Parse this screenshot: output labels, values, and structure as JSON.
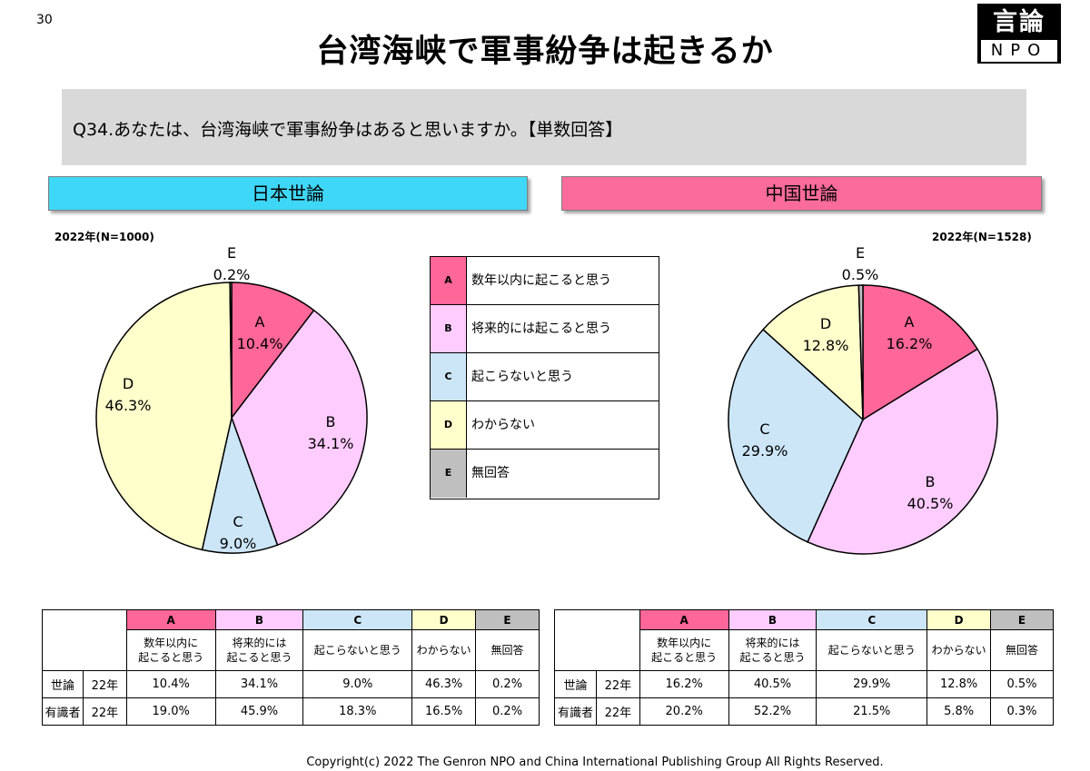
{
  "page_number": "30",
  "title": "台湾海峡で軍事紛争は起きるか",
  "logo": {
    "top": "言論",
    "bottom": "NPO"
  },
  "question": "Q34.あなたは、台湾海峡で軍事紛争はあると思いますか。【単数回答】",
  "japan": {
    "header": "日本世論",
    "sample": "2022年(N=1000)"
  },
  "china": {
    "header": "中国世論",
    "sample": "2022年(N=1528)"
  },
  "colors": {
    "A": "#ff6699",
    "B": "#ffccff",
    "C": "#cce6f8",
    "D": "#ffffcc",
    "E": "#bfbfbf"
  },
  "legend": [
    {
      "key": "A",
      "label": "数年以内に起こると思う"
    },
    {
      "key": "B",
      "label": "将来的には起こると思う"
    },
    {
      "key": "C",
      "label": "起こらないと思う"
    },
    {
      "key": "D",
      "label": "わからない"
    },
    {
      "key": "E",
      "label": "無回答"
    }
  ],
  "chart_data": [
    {
      "type": "pie",
      "title": "日本世論",
      "subtitle": "2022年(N=1000)",
      "categories": [
        "A",
        "B",
        "C",
        "D",
        "E"
      ],
      "values": [
        10.4,
        34.1,
        9.0,
        46.3,
        0.2
      ],
      "value_labels": [
        "10.4%",
        "34.1%",
        "9.0%",
        "46.3%",
        "0.2%"
      ]
    },
    {
      "type": "pie",
      "title": "中国世論",
      "subtitle": "2022年(N=1528)",
      "categories": [
        "A",
        "B",
        "C",
        "D",
        "E"
      ],
      "values": [
        16.2,
        40.5,
        29.9,
        12.8,
        0.5
      ],
      "value_labels": [
        "16.2%",
        "40.5%",
        "29.9%",
        "12.8%",
        "0.5%"
      ]
    },
    {
      "type": "table",
      "title": "日本世論",
      "columns": [
        "A",
        "B",
        "C",
        "D",
        "E"
      ],
      "column_labels": [
        "数年以内に\n起こると思う",
        "将来的には\n起こると思う",
        "起こらないと思う",
        "わからない",
        "無回答"
      ],
      "rows": [
        {
          "group": "世論",
          "year": "22年",
          "values": [
            "10.4%",
            "34.1%",
            "9.0%",
            "46.3%",
            "0.2%"
          ]
        },
        {
          "group": "有識者",
          "year": "22年",
          "values": [
            "19.0%",
            "45.9%",
            "18.3%",
            "16.5%",
            "0.2%"
          ]
        }
      ]
    },
    {
      "type": "table",
      "title": "中国世論",
      "columns": [
        "A",
        "B",
        "C",
        "D",
        "E"
      ],
      "column_labels": [
        "数年以内に\n起こると思う",
        "将来的には\n起こると思う",
        "起こらないと思う",
        "わからない",
        "無回答"
      ],
      "rows": [
        {
          "group": "世論",
          "year": "22年",
          "values": [
            "16.2%",
            "40.5%",
            "29.9%",
            "12.8%",
            "0.5%"
          ]
        },
        {
          "group": "有識者",
          "year": "22年",
          "values": [
            "20.2%",
            "52.2%",
            "21.5%",
            "5.8%",
            "0.3%"
          ]
        }
      ]
    }
  ],
  "copyright": "Copyright(c) 2022 The Genron NPO and China International Publishing Group All Rights Reserved."
}
